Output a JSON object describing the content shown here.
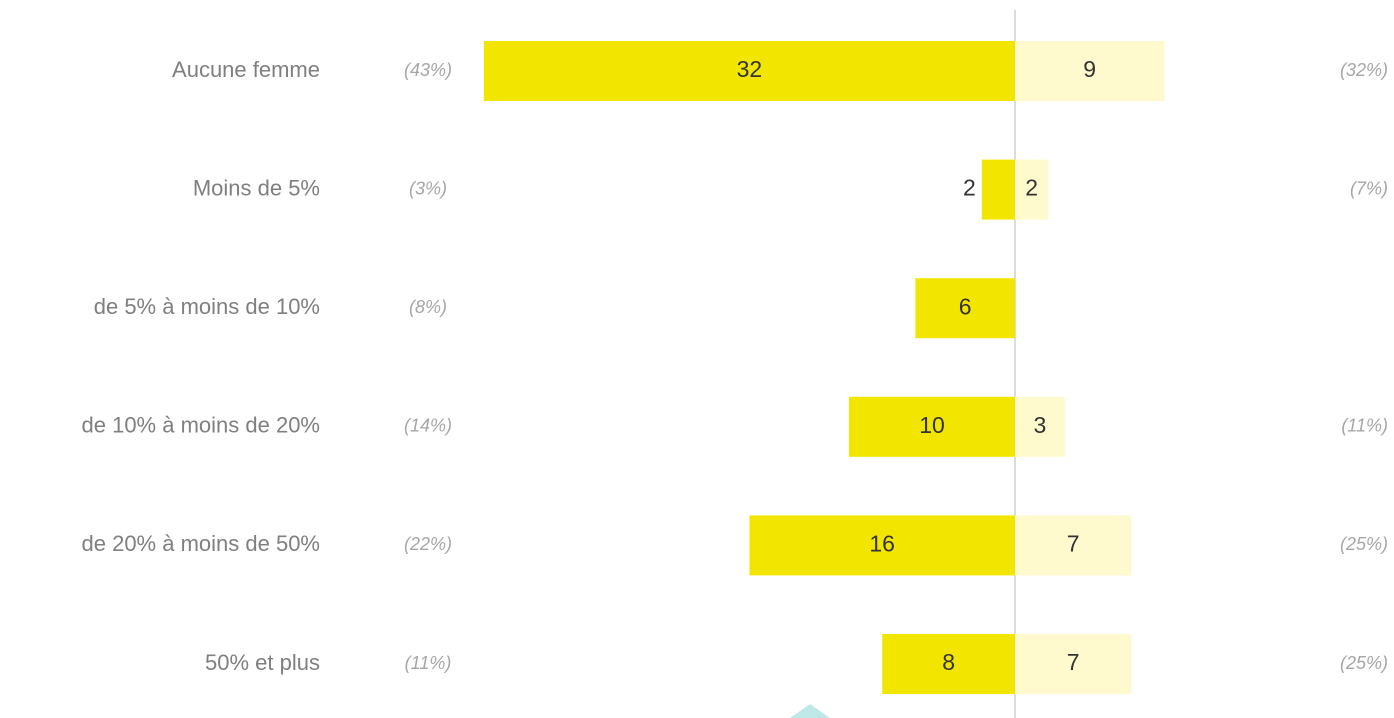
{
  "chart_data": {
    "type": "diverging_bar",
    "categories": [
      "Aucune femme",
      "Moins de 5%",
      "de 5% à moins de 10%",
      "de 10% à moins de 20%",
      "de 20% à moins de 50%",
      "50% et plus"
    ],
    "series": [
      {
        "color": "#f2e600",
        "values": [
          32,
          2,
          6,
          10,
          16,
          8
        ],
        "percent_labels": [
          "(43%)",
          "(3%)",
          "(8%)",
          "(14%)",
          "(22%)",
          "(11%)"
        ]
      },
      {
        "color": "#fffacd",
        "values": [
          9,
          2,
          null,
          3,
          7,
          7
        ],
        "percent_labels": [
          "(32%)",
          "(7%)",
          null,
          "(11%)",
          "(25%)",
          "(25%)"
        ]
      }
    ]
  }
}
